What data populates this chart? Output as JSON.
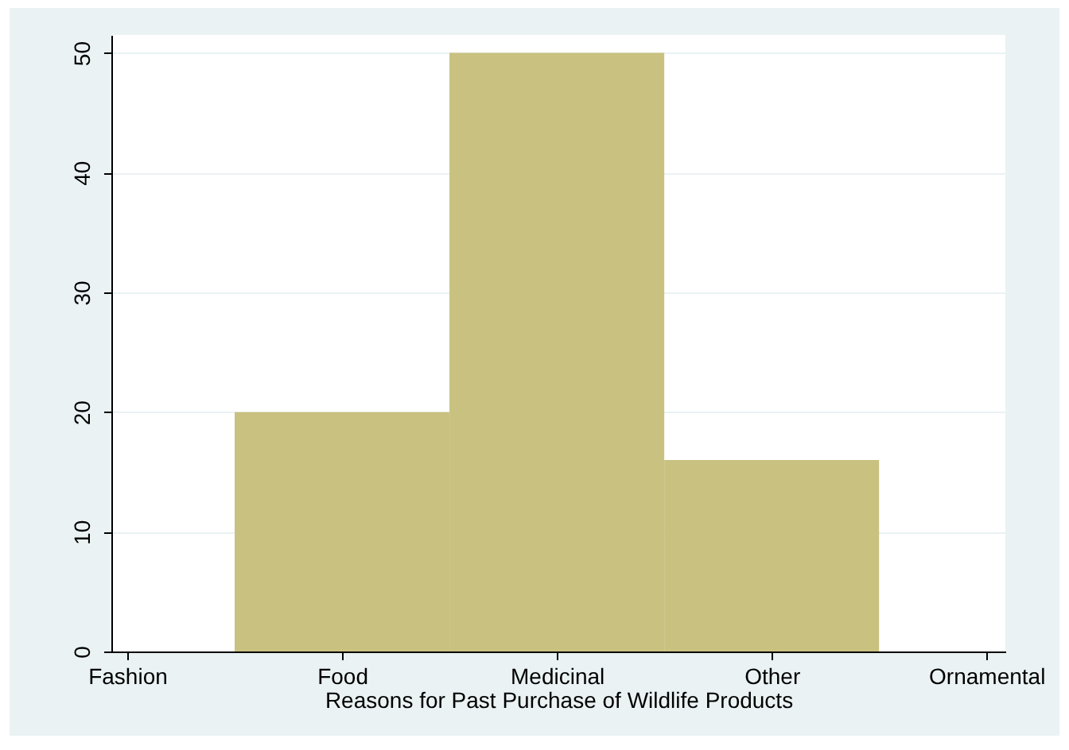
{
  "chart_data": {
    "type": "bar",
    "xlabel": "Reasons for Past Purchase of Wildlife Products",
    "categories": [
      "Fashion",
      "Food",
      "Medicinal",
      "Other",
      "Ornamental"
    ],
    "values": [
      0,
      20,
      50,
      16,
      0
    ],
    "color": "#c9c180",
    "ylim": [
      0,
      51.5
    ],
    "yticks": [
      0,
      10,
      20,
      30,
      40,
      50
    ],
    "grid": "y"
  }
}
